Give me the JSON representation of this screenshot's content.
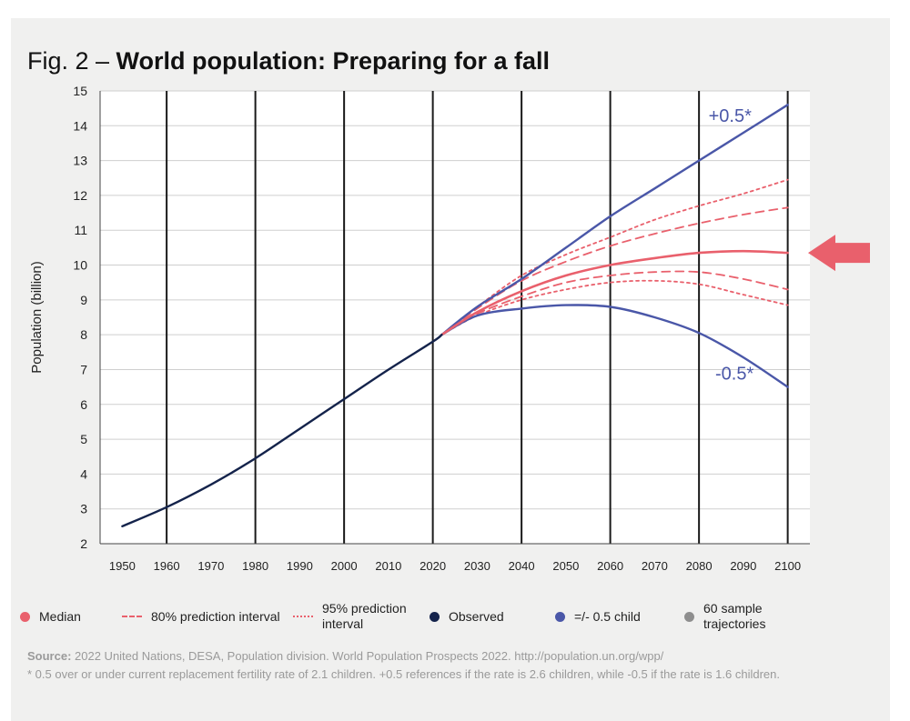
{
  "title": {
    "prefix": "Fig. 2 – ",
    "main": "World population: Preparing for a fall"
  },
  "chart_data": {
    "type": "line",
    "ylabel": "Population (billion)",
    "xlabel": "",
    "xlim": [
      1945,
      2105
    ],
    "ylim": [
      2,
      15
    ],
    "x_ticks": [
      1950,
      1960,
      1970,
      1980,
      1990,
      2000,
      2010,
      2020,
      2030,
      2040,
      2050,
      2060,
      2070,
      2080,
      2090,
      2100
    ],
    "y_ticks": [
      2,
      3,
      4,
      5,
      6,
      7,
      8,
      9,
      10,
      11,
      12,
      13,
      14,
      15
    ],
    "vertical_gridlines_at": [
      1960,
      1980,
      2000,
      2020,
      2040,
      2060,
      2080,
      2100
    ],
    "series": [
      {
        "name": "Observed",
        "style": "solid",
        "color": "#14234b",
        "x": [
          1950,
          1960,
          1970,
          1980,
          1990,
          2000,
          2010,
          2020,
          2022
        ],
        "y": [
          2.5,
          3.05,
          3.7,
          4.45,
          5.3,
          6.15,
          7.0,
          7.8,
          8.0
        ]
      },
      {
        "name": "+0.5 child",
        "style": "solid",
        "color": "#4a57a8",
        "x": [
          2022,
          2030,
          2040,
          2050,
          2060,
          2070,
          2080,
          2090,
          2100
        ],
        "y": [
          8.0,
          8.8,
          9.6,
          10.5,
          11.4,
          12.2,
          13.0,
          13.8,
          14.6
        ]
      },
      {
        "name": "-0.5 child",
        "style": "solid",
        "color": "#4a57a8",
        "x": [
          2022,
          2030,
          2040,
          2050,
          2060,
          2070,
          2080,
          2090,
          2100
        ],
        "y": [
          8.0,
          8.55,
          8.75,
          8.85,
          8.8,
          8.5,
          8.05,
          7.35,
          6.5
        ]
      },
      {
        "name": "Median",
        "style": "solid",
        "color": "#e9606c",
        "x": [
          2022,
          2030,
          2040,
          2050,
          2060,
          2070,
          2080,
          2090,
          2100
        ],
        "y": [
          8.0,
          8.65,
          9.25,
          9.7,
          10.0,
          10.2,
          10.35,
          10.4,
          10.35
        ]
      },
      {
        "name": "80% prediction interval (upper)",
        "style": "dashed",
        "color": "#e9606c",
        "x": [
          2022,
          2030,
          2040,
          2050,
          2060,
          2070,
          2080,
          2090,
          2100
        ],
        "y": [
          8.0,
          8.75,
          9.55,
          10.1,
          10.55,
          10.9,
          11.2,
          11.45,
          11.65
        ]
      },
      {
        "name": "80% prediction interval (lower)",
        "style": "dashed",
        "color": "#e9606c",
        "x": [
          2022,
          2030,
          2040,
          2050,
          2060,
          2070,
          2080,
          2090,
          2100
        ],
        "y": [
          8.0,
          8.6,
          9.1,
          9.5,
          9.7,
          9.8,
          9.8,
          9.6,
          9.3
        ]
      },
      {
        "name": "95% prediction interval (upper)",
        "style": "dotted",
        "color": "#e9606c",
        "x": [
          2022,
          2030,
          2040,
          2050,
          2060,
          2070,
          2080,
          2090,
          2100
        ],
        "y": [
          8.0,
          8.8,
          9.7,
          10.3,
          10.8,
          11.3,
          11.7,
          12.05,
          12.45
        ]
      },
      {
        "name": "95% prediction interval (lower)",
        "style": "dotted",
        "color": "#e9606c",
        "x": [
          2022,
          2030,
          2040,
          2050,
          2060,
          2070,
          2080,
          2090,
          2100
        ],
        "y": [
          8.0,
          8.55,
          9.0,
          9.3,
          9.5,
          9.55,
          9.45,
          9.15,
          8.85
        ]
      }
    ],
    "annotations": [
      {
        "text": "+0.5*",
        "x": 2087,
        "y": 14.3
      },
      {
        "text": "-0.5*",
        "x": 2088,
        "y": 6.9
      }
    ],
    "highlight_arrow": {
      "points_to_series": "Median",
      "color": "#e9606c"
    }
  },
  "legend": [
    {
      "label": "Median",
      "symbol": "dot",
      "color": "#e9606c"
    },
    {
      "label": "80% prediction interval",
      "symbol": "dashed",
      "color": "#e9606c"
    },
    {
      "label": "95% prediction interval",
      "symbol": "dotted",
      "color": "#e9606c"
    },
    {
      "label": "Observed",
      "symbol": "dot",
      "color": "#14234b"
    },
    {
      "label": "=/- 0.5 child",
      "symbol": "dot",
      "color": "#4a57a8"
    },
    {
      "label": "60 sample trajectories",
      "symbol": "dot",
      "color": "#8e8e8e"
    }
  ],
  "source": {
    "label": "Source:",
    "line1": " 2022 United Nations, DESA, Population division. World Population Prospects 2022. http://population.un.org/wpp/",
    "line2": "* 0.5 over or under current replacement fertility rate of 2.1 children. +0.5 references if the rate is 2.6 children, while -0.5 if the rate is 1.6 children."
  }
}
